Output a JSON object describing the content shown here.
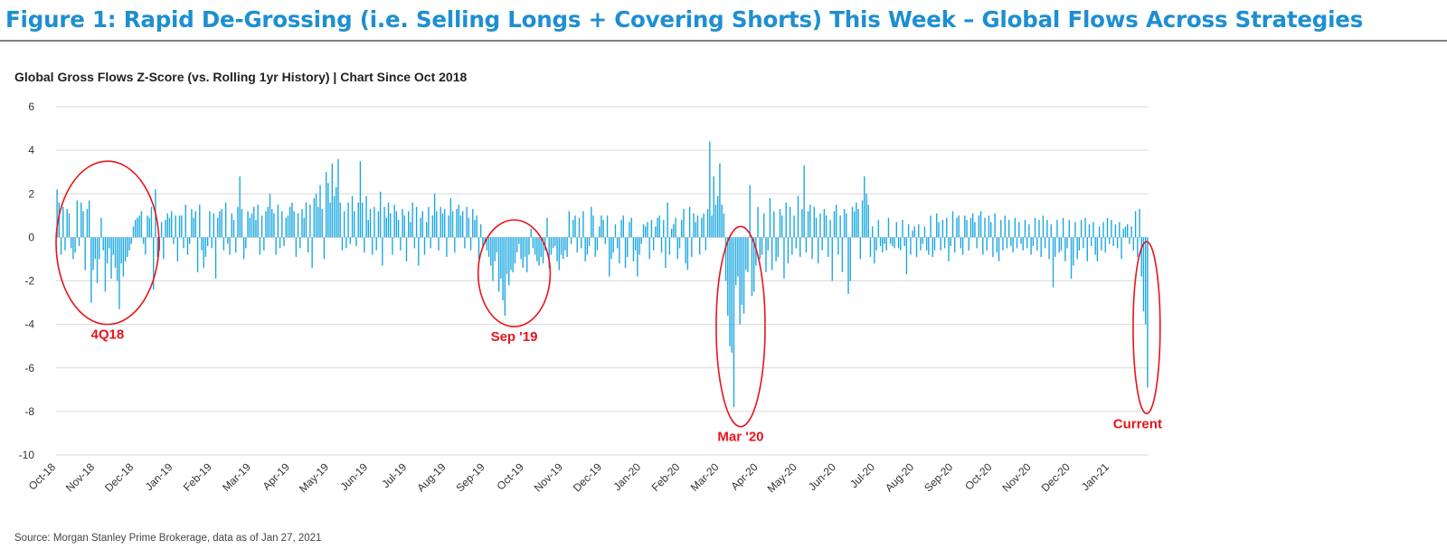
{
  "figure_title": "Figure 1: Rapid De-Grossing (i.e. Selling Longs + Covering Shorts) This Week – Global Flows Across Strategies",
  "source_note": "Source: Morgan Stanley Prime Brokerage, data as of Jan 27, 2021",
  "colors": {
    "title": "#1e8fd0",
    "bar": "#1aa7e0",
    "annotation": "#e8141b",
    "grid": "#d9d9d9"
  },
  "chart_data": {
    "type": "bar",
    "title": "Global Gross Flows Z-Score (vs. Rolling 1yr History) | Chart Since Oct 2018",
    "xlabel": "",
    "ylabel": "",
    "ylim": [
      -10,
      6
    ],
    "yticks": [
      6,
      4,
      2,
      0,
      -2,
      -4,
      -6,
      -8,
      -10
    ],
    "x_start": "2018-10-01",
    "x_end": "2021-01-27",
    "x_tick_labels": [
      "Oct-18",
      "Nov-18",
      "Dec-18",
      "Jan-19",
      "Feb-19",
      "Mar-19",
      "Apr-19",
      "May-19",
      "Jun-19",
      "Jul-19",
      "Aug-19",
      "Sep-19",
      "Oct-19",
      "Nov-19",
      "Dec-19",
      "Jan-20",
      "Feb-20",
      "Mar-20",
      "Apr-20",
      "May-20",
      "Jun-20",
      "Jul-20",
      "Aug-20",
      "Sep-20",
      "Oct-20",
      "Nov-20",
      "Dec-20",
      "Jan-21"
    ],
    "grid": true,
    "series": [
      {
        "values": [
          2.2,
          1.6,
          -0.8,
          1.4,
          -0.6,
          1.3,
          1.1,
          -0.5,
          -1.0,
          -0.7,
          1.7,
          -0.4,
          1.6,
          1.2,
          -1.5,
          1.3,
          1.7,
          -3.0,
          -1.5,
          -1.0,
          -2.1,
          -1.0,
          0.9,
          -0.6,
          -2.5,
          -1.2,
          -0.5,
          -1.9,
          -0.8,
          -1.4,
          -2.0,
          -3.3,
          -1.2,
          -1.8,
          -1.1,
          -0.9,
          -0.6,
          -0.3,
          0.5,
          0.8,
          0.9,
          1.0,
          1.2,
          -0.3,
          -0.8,
          1.0,
          0.9,
          1.4,
          -2.4,
          2.2,
          -0.9,
          -0.6,
          0.7,
          -1.0,
          0.8,
          1.1,
          0.9,
          1.2,
          -0.3,
          1.0,
          -1.1,
          1.0,
          1.0,
          -0.5,
          1.5,
          -0.8,
          -0.3,
          1.3,
          0.9,
          1.2,
          -1.6,
          1.5,
          -0.6,
          -1.4,
          -0.9,
          -0.4,
          1.2,
          -0.5,
          1.1,
          -1.9,
          0.9,
          1.2,
          1.3,
          -0.6,
          1.6,
          -0.3,
          -0.8,
          1.1,
          0.8,
          -0.7,
          1.4,
          2.8,
          1.3,
          -1.0,
          -0.5,
          1.2,
          0.9,
          1.1,
          1.4,
          0.8,
          1.5,
          -0.8,
          1.0,
          -0.6,
          1.2,
          1.4,
          2.0,
          1.3,
          1.1,
          -0.8,
          1.5,
          -0.5,
          1.2,
          -0.4,
          0.9,
          1.0,
          1.4,
          1.6,
          1.2,
          -0.9,
          1.1,
          -0.5,
          1.3,
          0.9,
          1.6,
          -0.7,
          1.5,
          -1.4,
          1.8,
          2.0,
          1.4,
          2.4,
          1.3,
          -1.0,
          3.0,
          2.5,
          1.6,
          3.4,
          1.9,
          2.3,
          3.6,
          1.6,
          -0.6,
          1.2,
          -0.5,
          1.6,
          -0.3,
          1.9,
          1.2,
          -0.4,
          1.6,
          3.5,
          1.6,
          -0.7,
          1.9,
          0.8,
          1.3,
          -0.8,
          1.4,
          -0.6,
          1.2,
          2.1,
          -1.3,
          1.4,
          0.9,
          1.6,
          1.1,
          -0.8,
          1.5,
          1.2,
          0.8,
          -0.6,
          1.3,
          1.0,
          -1.1,
          1.2,
          0.7,
          1.6,
          -0.5,
          1.4,
          -1.3,
          0.9,
          1.2,
          -0.8,
          0.7,
          1.4,
          -0.5,
          1.0,
          2.0,
          1.2,
          -0.6,
          1.4,
          1.1,
          1.3,
          -0.9,
          1.0,
          1.8,
          1.2,
          -0.7,
          1.3,
          1.5,
          1.0,
          1.2,
          -0.5,
          1.4,
          0.9,
          -0.6,
          1.3,
          0.8,
          1.0,
          -1.0,
          0.6,
          -0.4,
          -0.3,
          -0.6,
          -0.9,
          -1.3,
          -2.0,
          -1.1,
          -0.7,
          -2.5,
          -1.9,
          -2.9,
          -3.6,
          -1.7,
          -2.2,
          -1.5,
          -1.6,
          -1.2,
          -0.7,
          -0.3,
          -1.0,
          -1.4,
          -0.9,
          -1.6,
          -0.8,
          0.4,
          -0.5,
          -0.8,
          -1.1,
          -1.3,
          -0.9,
          -1.2,
          -0.6,
          0.9,
          -1.4,
          -0.8,
          -0.5,
          -0.4,
          -1.1,
          -1.5,
          -0.8,
          -1.0,
          -0.6,
          -0.9,
          1.2,
          -0.3,
          0.8,
          1.0,
          -0.7,
          0.9,
          -0.5,
          1.2,
          -1.1,
          -0.8,
          -0.4,
          1.4,
          1.0,
          -0.9,
          -0.6,
          0.5,
          1.0,
          0.8,
          -0.3,
          1.0,
          -1.8,
          -1.0,
          -0.7,
          0.6,
          -0.5,
          -1.2,
          0.8,
          1.0,
          -1.4,
          -0.9,
          0.7,
          0.9,
          -1.1,
          -0.6,
          -1.8,
          -0.8,
          -0.3,
          0.6,
          0.5,
          0.7,
          -1.0,
          0.8,
          -0.6,
          0.5,
          0.9,
          1.0,
          -0.7,
          0.8,
          -1.4,
          1.6,
          -0.8,
          0.4,
          0.6,
          0.9,
          -1.0,
          -0.5,
          0.8,
          1.3,
          -1.2,
          -1.5,
          1.4,
          -0.9,
          1.1,
          0.7,
          1.0,
          -0.8,
          0.9,
          1.1,
          -0.6,
          1.3,
          4.4,
          1.0,
          2.8,
          1.5,
          1.9,
          3.4,
          1.5,
          1.1,
          -2.0,
          -3.6,
          -5.0,
          -5.3,
          -7.8,
          -2.2,
          -1.8,
          -4.0,
          -3.1,
          -3.5,
          -1.5,
          -1.6,
          2.4,
          -2.7,
          -2.5,
          -1.3,
          1.4,
          -1.0,
          -0.8,
          1.1,
          -1.6,
          -0.6,
          1.8,
          -1.5,
          1.2,
          -1.1,
          -0.9,
          1.3,
          1.0,
          -1.9,
          1.6,
          -1.2,
          1.4,
          -0.8,
          1.0,
          -0.5,
          1.9,
          -0.9,
          1.3,
          3.3,
          -0.7,
          1.2,
          1.5,
          -1.0,
          1.4,
          0.9,
          -1.2,
          1.1,
          -0.6,
          1.3,
          1.0,
          -0.9,
          0.8,
          -2.0,
          1.2,
          1.5,
          -0.8,
          1.0,
          -1.6,
          1.3,
          1.1,
          -2.6,
          -2.0,
          1.4,
          1.2,
          1.6,
          1.3,
          -1.0,
          1.7,
          2.8,
          2.0,
          1.5,
          -0.9,
          0.5,
          -1.2,
          -0.6,
          0.8,
          -0.4,
          -0.7,
          -0.3,
          -0.6,
          0.9,
          -0.3,
          -0.4,
          -0.5,
          0.7,
          -0.5,
          -0.6,
          0.8,
          -0.4,
          -1.7,
          0.6,
          -0.8,
          0.3,
          0.5,
          -0.9,
          0.6,
          -0.6,
          -0.3,
          0.5,
          -0.6,
          -0.8,
          1.0,
          -0.9,
          -0.6,
          1.1,
          0.7,
          -0.6,
          0.8,
          -0.5,
          0.9,
          -1.1,
          -0.4,
          1.2,
          -0.7,
          0.9,
          1.0,
          -0.5,
          -0.8,
          1.0,
          0.8,
          -0.6,
          0.9,
          1.1,
          0.7,
          -0.5,
          1.0,
          1.2,
          -0.8,
          0.9,
          -0.6,
          1.0,
          0.7,
          -0.9,
          1.1,
          -0.7,
          -1.1,
          0.8,
          -0.6,
          1.0,
          -0.5,
          0.8,
          -0.4,
          -0.7,
          0.9,
          -0.5,
          0.7,
          -0.3,
          -0.6,
          0.8,
          -0.5,
          0.6,
          -0.8,
          -0.4,
          0.9,
          -0.6,
          0.8,
          -0.9,
          1.0,
          -0.5,
          0.8,
          -1.0,
          0.6,
          -2.3,
          -0.9,
          0.8,
          -0.7,
          -0.6,
          0.9,
          -1.1,
          -0.5,
          0.8,
          -1.9,
          -1.3,
          0.7,
          -1.0,
          -0.6,
          0.8,
          -0.5,
          0.9,
          -1.1,
          0.6,
          -0.4,
          0.7,
          -0.8,
          -1.1,
          0.5,
          -0.6,
          0.7,
          -0.7,
          0.9,
          -0.3,
          0.8,
          -0.4,
          0.6,
          -0.5,
          0.7,
          -1.0,
          0.4,
          0.5,
          0.6,
          -0.3,
          0.5,
          -0.6,
          1.2,
          -0.9,
          1.3,
          -1.8,
          -3.4,
          -4.0,
          -6.9
        ]
      }
    ],
    "annotations": [
      {
        "label": "4Q18",
        "x_from": "2018-10-01",
        "x_to": "2018-12-20"
      },
      {
        "label": "Sep '19",
        "x_from": "2019-08-25",
        "x_to": "2019-10-20"
      },
      {
        "label": "Mar '20",
        "x_from": "2020-02-26",
        "x_to": "2020-04-04"
      },
      {
        "label": "Current",
        "x_from": "2021-01-15",
        "x_to": "2021-02-05"
      }
    ]
  }
}
